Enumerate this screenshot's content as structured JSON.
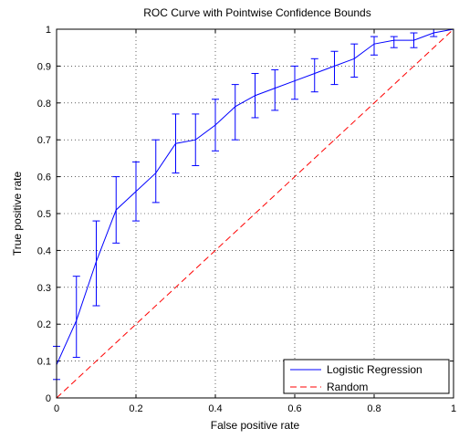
{
  "chart_data": {
    "type": "line",
    "title": "ROC Curve with Pointwise Confidence Bounds",
    "xlabel": "False positive rate",
    "ylabel": "True positive rate",
    "xlim": [
      0,
      1
    ],
    "ylim": [
      0,
      1
    ],
    "grid": true,
    "legend_position": "bottom-right",
    "x_ticks": [
      "0",
      "0.2",
      "0.4",
      "0.6",
      "0.8",
      "1"
    ],
    "y_ticks": [
      "0",
      "0.1",
      "0.2",
      "0.3",
      "0.4",
      "0.5",
      "0.6",
      "0.7",
      "0.8",
      "0.9",
      "1"
    ],
    "series": [
      {
        "name": "Logistic Regression",
        "color": "#0000ff",
        "style": "solid",
        "x": [
          0,
          0.05,
          0.1,
          0.15,
          0.2,
          0.25,
          0.3,
          0.35,
          0.4,
          0.45,
          0.5,
          0.55,
          0.6,
          0.65,
          0.7,
          0.75,
          0.8,
          0.85,
          0.9,
          0.95,
          1.0
        ],
        "y": [
          0.09,
          0.21,
          0.37,
          0.51,
          0.56,
          0.61,
          0.69,
          0.7,
          0.74,
          0.79,
          0.82,
          0.84,
          0.86,
          0.88,
          0.9,
          0.92,
          0.96,
          0.97,
          0.97,
          0.99,
          1.0
        ],
        "y_lower": [
          0.05,
          0.11,
          0.25,
          0.42,
          0.48,
          0.53,
          0.61,
          0.63,
          0.67,
          0.7,
          0.76,
          0.78,
          0.81,
          0.83,
          0.85,
          0.87,
          0.93,
          0.95,
          0.95,
          0.98,
          1.0
        ],
        "y_upper": [
          0.14,
          0.33,
          0.48,
          0.6,
          0.64,
          0.7,
          0.77,
          0.77,
          0.81,
          0.85,
          0.88,
          0.89,
          0.9,
          0.92,
          0.94,
          0.96,
          0.98,
          0.98,
          0.99,
          1.0,
          1.0
        ]
      },
      {
        "name": "Random",
        "color": "#ff0000",
        "style": "dashed",
        "x": [
          0,
          1
        ],
        "y": [
          0,
          1
        ]
      }
    ]
  }
}
